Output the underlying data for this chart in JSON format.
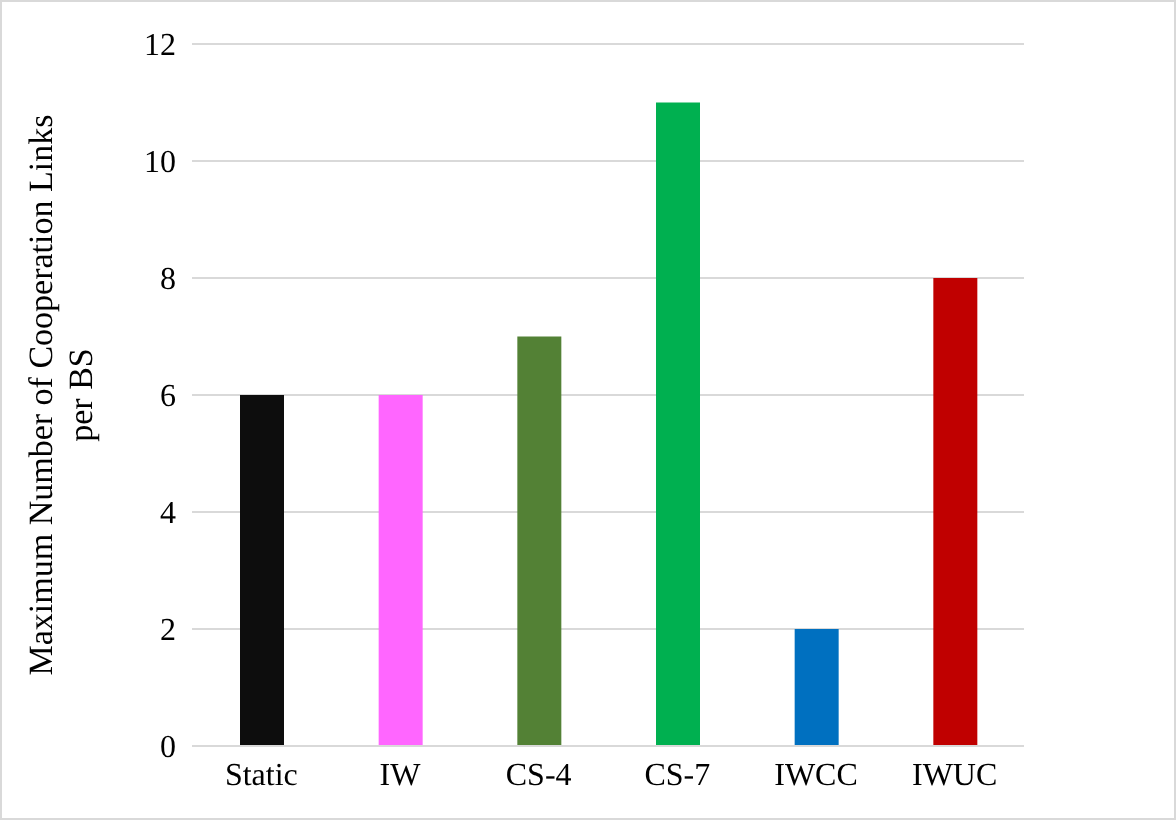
{
  "chart_data": {
    "type": "bar",
    "ylabel": "Maximum Number of Cooperation Links per BS",
    "categories": [
      "Static",
      "IW",
      "CS-4",
      "CS-7",
      "IWCC",
      "IWUC"
    ],
    "values": [
      6,
      6,
      7,
      11,
      2,
      8
    ],
    "colors": [
      "#0d0d0d",
      "#ff66ff",
      "#538135",
      "#00b050",
      "#0070c0",
      "#c00000"
    ],
    "ylim": [
      0,
      12
    ],
    "yticks": [
      0,
      2,
      4,
      6,
      8,
      10,
      12
    ],
    "grid": "y"
  }
}
